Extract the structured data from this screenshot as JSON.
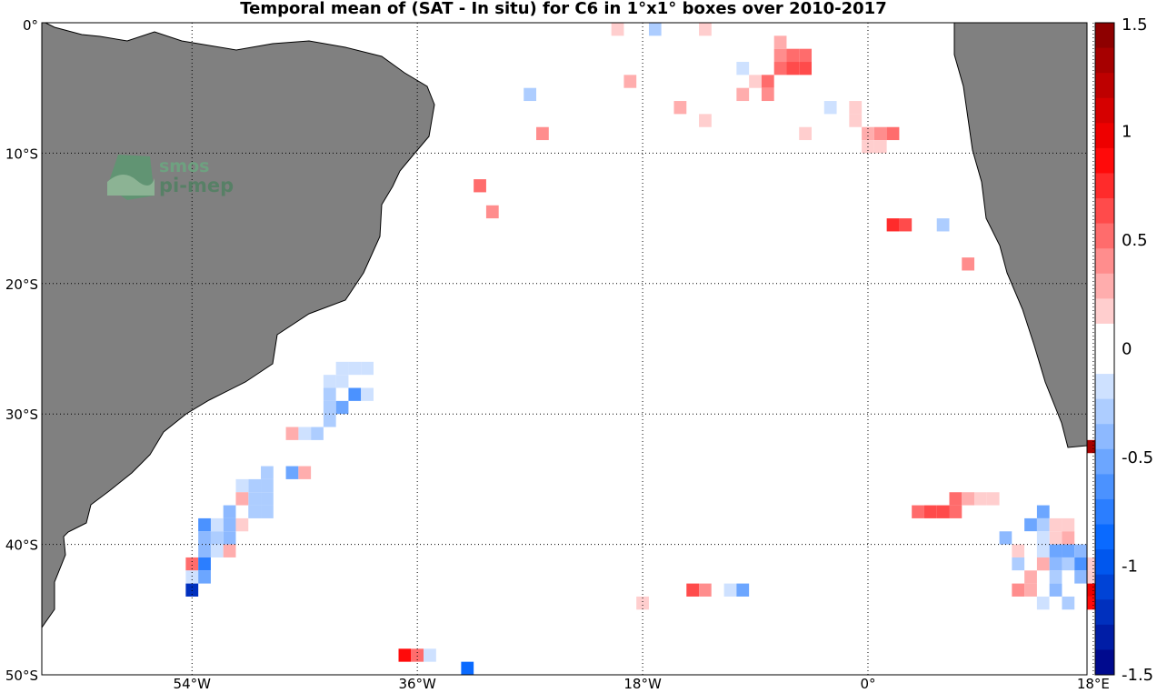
{
  "title": "Temporal mean of (SAT - In situ) for C6 in 1°x1° boxes over 2010-2017",
  "logo": {
    "line1": "smos",
    "line2": "pi-mep"
  },
  "map": {
    "lon_range": [
      -66,
      17.5
    ],
    "lat_range": [
      -50,
      0
    ],
    "x_ticks": [
      {
        "value": -54,
        "label": "54°W"
      },
      {
        "value": -36,
        "label": "36°W"
      },
      {
        "value": -18,
        "label": "18°W"
      },
      {
        "value": 0,
        "label": "0°"
      },
      {
        "value": 18,
        "label": "18°E"
      }
    ],
    "y_ticks": [
      {
        "value": 0,
        "label": "0°"
      },
      {
        "value": -10,
        "label": "10°S"
      },
      {
        "value": -20,
        "label": "20°S"
      },
      {
        "value": -30,
        "label": "30°S"
      },
      {
        "value": -40,
        "label": "40°S"
      },
      {
        "value": -50,
        "label": "50°S"
      }
    ],
    "grid": "dotted",
    "land_color": "#808080"
  },
  "colorbar": {
    "range": [
      -1.5,
      1.5
    ],
    "ticks": [
      {
        "value": 1.5,
        "label": "1.5"
      },
      {
        "value": 1,
        "label": "1"
      },
      {
        "value": 0.5,
        "label": "0.5"
      },
      {
        "value": 0,
        "label": "0"
      },
      {
        "value": -0.5,
        "label": "-0.5"
      },
      {
        "value": -1,
        "label": "-1"
      },
      {
        "value": -1.5,
        "label": "-1.5"
      }
    ],
    "levels": 26
  },
  "chart_data": {
    "type": "heatmap",
    "cell_size_deg": 1,
    "cells": [
      [
        -26,
        -0.5,
        0.1
      ],
      [
        -22,
        -0.5,
        0.1
      ],
      [
        -20,
        -0.5,
        0.2
      ],
      [
        -17,
        -0.5,
        -0.3
      ],
      [
        -16,
        -0.5,
        -0.1
      ],
      [
        -13,
        -0.5,
        0.2
      ],
      [
        -26,
        -2.5,
        -0.05
      ],
      [
        -26,
        -3.5,
        -0.05
      ],
      [
        -26,
        -4.5,
        -0.05
      ],
      [
        -27,
        -5.5,
        -0.3
      ],
      [
        -12,
        -2.5,
        0.1
      ],
      [
        -11,
        -2.5,
        -0.05
      ],
      [
        -19,
        -4.5,
        0.25
      ],
      [
        -15,
        -6.5,
        0.3
      ],
      [
        -13,
        -7.5,
        0.2
      ],
      [
        -10,
        -3.5,
        -0.2
      ],
      [
        -9,
        -4.5,
        0.2
      ],
      [
        -8,
        -4.5,
        0.5
      ],
      [
        -8,
        -5.5,
        0.4
      ],
      [
        -10,
        -5.5,
        0.3
      ],
      [
        -7,
        -3.5,
        0.5
      ],
      [
        -7,
        -2.5,
        0.4
      ],
      [
        -7,
        -1.5,
        0.3
      ],
      [
        -6,
        -3.5,
        0.6
      ],
      [
        -6,
        -2.5,
        0.5
      ],
      [
        -5,
        -2.5,
        0.5
      ],
      [
        -5,
        -3.5,
        0.6
      ],
      [
        -7,
        -6.5,
        -0.1
      ],
      [
        -5,
        -8.5,
        0.2
      ],
      [
        -3,
        -6.5,
        -0.2
      ],
      [
        -1,
        -6.5,
        0.2
      ],
      [
        -1,
        -7.5,
        0.2
      ],
      [
        0,
        -8.5,
        0.3
      ],
      [
        1,
        -8.5,
        0.4
      ],
      [
        0,
        -9.5,
        0.15
      ],
      [
        1,
        -9.5,
        0.15
      ],
      [
        2,
        -8.5,
        0.5
      ],
      [
        -26,
        -8.5,
        0.35
      ],
      [
        -31,
        -12.5,
        0.55
      ],
      [
        -30,
        -14.5,
        0.35
      ],
      [
        2,
        -15.5,
        0.8
      ],
      [
        3,
        -15.5,
        0.6
      ],
      [
        6,
        -15.5,
        -0.3
      ],
      [
        8,
        -18.5,
        0.35
      ],
      [
        -40,
        -26.5,
        -0.2
      ],
      [
        -41,
        -26.5,
        -0.2
      ],
      [
        -42,
        -26.5,
        -0.2
      ],
      [
        -42,
        -27.5,
        -0.2
      ],
      [
        -43,
        -27.5,
        -0.2
      ],
      [
        -41,
        -28.5,
        -0.6
      ],
      [
        -40,
        -28.5,
        -0.15
      ],
      [
        -43,
        -28.5,
        -0.3
      ],
      [
        -42,
        -29.5,
        -0.5
      ],
      [
        -43,
        -29.5,
        -0.25
      ],
      [
        -43,
        -30.5,
        -0.25
      ],
      [
        -44,
        -31.5,
        -0.3
      ],
      [
        -45,
        -31.5,
        -0.15
      ],
      [
        -46,
        -31.5,
        0.3
      ],
      [
        -46,
        -34.5,
        -0.5
      ],
      [
        -45,
        -34.5,
        0.3
      ],
      [
        -47,
        -35.5,
        -0.1
      ],
      [
        -48,
        -35.5,
        -0.25
      ],
      [
        -48,
        -34.5,
        -0.25
      ],
      [
        -49,
        -35.5,
        -0.25
      ],
      [
        -48,
        -36.5,
        -0.25
      ],
      [
        -49,
        -36.5,
        -0.25
      ],
      [
        -48,
        -37.5,
        -0.25
      ],
      [
        -49,
        -37.5,
        -0.25
      ],
      [
        -50,
        -35.5,
        -0.2
      ],
      [
        -50,
        -36.5,
        0.3
      ],
      [
        -51,
        -37.5,
        -0.4
      ],
      [
        -51,
        -38.5,
        -0.4
      ],
      [
        -51,
        -39.5,
        -0.4
      ],
      [
        -50,
        -38.5,
        0.2
      ],
      [
        -52,
        -38.5,
        -0.2
      ],
      [
        -53,
        -38.5,
        -0.6
      ],
      [
        -52,
        -39.5,
        -0.3
      ],
      [
        -53,
        -39.5,
        -0.4
      ],
      [
        -52,
        -40.5,
        -0.2
      ],
      [
        -53,
        -40.5,
        -0.4
      ],
      [
        -51,
        -40.5,
        0.3
      ],
      [
        -54,
        -41.5,
        0.5
      ],
      [
        -54,
        -42.5,
        -0.2
      ],
      [
        -53,
        -41.5,
        -0.7
      ],
      [
        -53,
        -42.5,
        -0.5
      ],
      [
        -54,
        -43.5,
        -1.2
      ],
      [
        -38,
        -48.5,
        0.1
      ],
      [
        -37,
        -48.5,
        0.9
      ],
      [
        -36,
        -48.5,
        0.5
      ],
      [
        -35,
        -48.5,
        -0.15
      ],
      [
        -32,
        -49.5,
        -0.9
      ],
      [
        -14,
        -43.5,
        0.6
      ],
      [
        -13,
        -43.5,
        0.4
      ],
      [
        -12,
        -43.5,
        0.1
      ],
      [
        -11,
        -43.5,
        -0.2
      ],
      [
        -10,
        -43.5,
        -0.5
      ],
      [
        -18,
        -44.5,
        0.2
      ],
      [
        4,
        -37.5,
        0.5
      ],
      [
        5,
        -37.5,
        0.6
      ],
      [
        6,
        -37.5,
        0.6
      ],
      [
        7,
        -37.5,
        0.5
      ],
      [
        7,
        -36.5,
        0.5
      ],
      [
        8,
        -36.5,
        0.3
      ],
      [
        9,
        -36.5,
        0.2
      ],
      [
        10,
        -36.5,
        0.2
      ],
      [
        14,
        -37.5,
        -0.5
      ],
      [
        14,
        -38.5,
        -0.3
      ],
      [
        13,
        -38.5,
        -0.5
      ],
      [
        15,
        -38.5,
        0.2
      ],
      [
        16,
        -38.5,
        0.2
      ],
      [
        15,
        -39.5,
        0.2
      ],
      [
        16,
        -39.5,
        0.3
      ],
      [
        11,
        -39.5,
        -0.4
      ],
      [
        12,
        -39.5,
        -0.1
      ],
      [
        13,
        -39.5,
        -0.1
      ],
      [
        14,
        -39.5,
        -0.2
      ],
      [
        12,
        -40.5,
        0.2
      ],
      [
        13,
        -40.5,
        -0.1
      ],
      [
        14,
        -40.5,
        -0.2
      ],
      [
        15,
        -40.5,
        -0.5
      ],
      [
        16,
        -40.5,
        -0.5
      ],
      [
        17,
        -40.5,
        -0.4
      ],
      [
        11,
        -41.5,
        -0.1
      ],
      [
        12,
        -41.5,
        -0.3
      ],
      [
        14,
        -41.5,
        0.3
      ],
      [
        15,
        -41.5,
        -0.4
      ],
      [
        16,
        -41.5,
        -0.3
      ],
      [
        17,
        -41.5,
        -0.6
      ],
      [
        18,
        -41.5,
        0.2
      ],
      [
        12,
        -42.5,
        -0.1
      ],
      [
        13,
        -42.5,
        0.3
      ],
      [
        15,
        -42.5,
        -0.3
      ],
      [
        16,
        -42.5,
        -0.1
      ],
      [
        17,
        -42.5,
        -0.4
      ],
      [
        18,
        -42.5,
        0.2
      ],
      [
        12,
        -43.5,
        0.4
      ],
      [
        13,
        -43.5,
        0.3
      ],
      [
        15,
        -43.5,
        -0.4
      ],
      [
        18,
        -43.5,
        1.0
      ],
      [
        14,
        -44.5,
        -0.2
      ],
      [
        15,
        -44.5,
        -0.1
      ],
      [
        16,
        -44.5,
        -0.3
      ],
      [
        18,
        -44.5,
        0.9
      ],
      [
        18,
        -32.5,
        1.3
      ]
    ]
  }
}
